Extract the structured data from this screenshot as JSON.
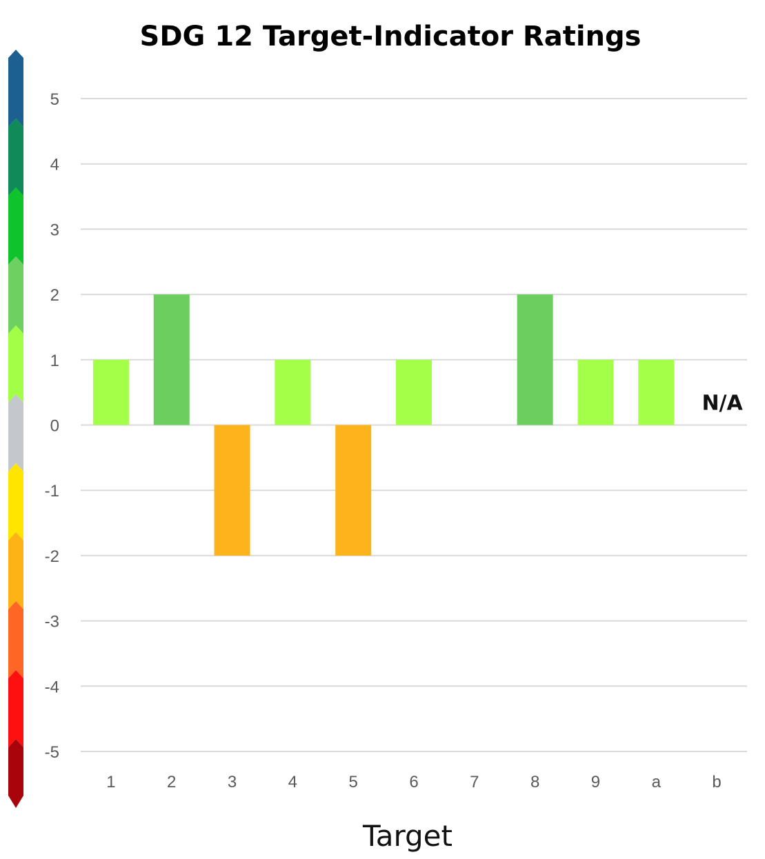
{
  "chart_data": {
    "type": "bar",
    "title": "SDG 12 Target-Indicator Ratings",
    "xlabel": "Target",
    "ylabel": "",
    "ylim": [
      -5,
      5
    ],
    "yticks": [
      "5",
      "4",
      "3",
      "2",
      "1",
      "0",
      "-1",
      "-2",
      "-3",
      "-4",
      "-5"
    ],
    "categories": [
      "1",
      "2",
      "3",
      "4",
      "5",
      "6",
      "7",
      "8",
      "9",
      "a",
      "b"
    ],
    "values": [
      1,
      2,
      -2,
      1,
      -2,
      1,
      0,
      2,
      1,
      1,
      null
    ],
    "annotations": [
      {
        "category": "b",
        "text": "N/A"
      }
    ],
    "grid": true,
    "legend": "none",
    "colors": {
      "1": "#a3ff47",
      "2": "#6bcf60",
      "-2": "#fdb41c",
      "gridline": "#d9d9d9",
      "text": "#595959"
    },
    "scale_colors": [
      "#1c5f91",
      "#0f8a58",
      "#0fc32d",
      "#6ed061",
      "#a2ff45",
      "#c4c8cd",
      "#ffe500",
      "#fdb216",
      "#fd6624",
      "#fe1010",
      "#a9040c"
    ]
  }
}
